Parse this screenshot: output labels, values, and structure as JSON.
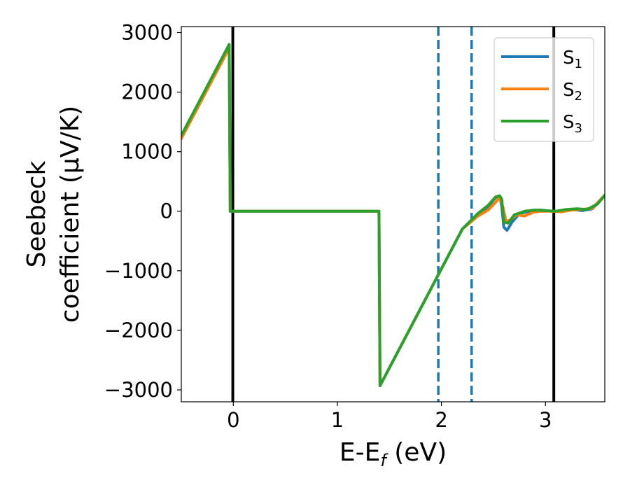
{
  "chart_data": {
    "type": "line",
    "title": "",
    "xlabel": "E-E_f (eV)",
    "xlabel_parts": {
      "main": "E-E",
      "sub": "f",
      "rest": " (eV)"
    },
    "ylabel_lines": [
      "Seebeck",
      "coefficient  (μV/K)"
    ],
    "xlim": [
      -0.5,
      3.57
    ],
    "ylim": [
      -3200,
      3100
    ],
    "xticks": [
      0,
      1,
      2,
      3
    ],
    "xtick_labels": [
      "0",
      "1",
      "2",
      "3"
    ],
    "yticks": [
      -3000,
      -2000,
      -1000,
      0,
      1000,
      2000,
      3000
    ],
    "ytick_labels": [
      "−3000",
      "−2000",
      "−1000",
      "0",
      "1000",
      "2000",
      "3000"
    ],
    "grid": false,
    "legend_position": "top-right",
    "vlines": [
      {
        "x": -0.005,
        "style": "solid",
        "color": "#000000"
      },
      {
        "x": 3.08,
        "style": "solid",
        "color": "#000000"
      },
      {
        "x": 1.97,
        "style": "dashed",
        "color": "#1f77b4"
      },
      {
        "x": 2.29,
        "style": "dashed",
        "color": "#1f77b4"
      }
    ],
    "series": [
      {
        "name": "S1",
        "legend_main": "S",
        "legend_sub": "1",
        "color": "#1f77b4",
        "points": [
          [
            -0.5,
            1240
          ],
          [
            -0.04,
            2800
          ],
          [
            -0.03,
            0
          ],
          [
            1.4,
            0
          ],
          [
            1.41,
            -2930
          ],
          [
            2.2,
            -300
          ],
          [
            2.35,
            -50
          ],
          [
            2.45,
            80
          ],
          [
            2.52,
            230
          ],
          [
            2.56,
            250
          ],
          [
            2.58,
            80
          ],
          [
            2.6,
            -270
          ],
          [
            2.63,
            -320
          ],
          [
            2.68,
            -180
          ],
          [
            2.75,
            -40
          ],
          [
            2.85,
            0
          ],
          [
            2.95,
            20
          ],
          [
            3.05,
            0
          ],
          [
            3.15,
            0
          ],
          [
            3.25,
            30
          ],
          [
            3.35,
            10
          ],
          [
            3.45,
            40
          ],
          [
            3.57,
            260
          ]
        ]
      },
      {
        "name": "S2",
        "legend_main": "S",
        "legend_sub": "2",
        "color": "#ff7f0e",
        "points": [
          [
            -0.5,
            1220
          ],
          [
            -0.04,
            2740
          ],
          [
            -0.03,
            0
          ],
          [
            1.4,
            0
          ],
          [
            1.41,
            -2930
          ],
          [
            2.2,
            -300
          ],
          [
            2.35,
            -80
          ],
          [
            2.45,
            20
          ],
          [
            2.52,
            150
          ],
          [
            2.56,
            230
          ],
          [
            2.59,
            80
          ],
          [
            2.62,
            -170
          ],
          [
            2.66,
            -150
          ],
          [
            2.72,
            -60
          ],
          [
            2.8,
            -80
          ],
          [
            2.88,
            -20
          ],
          [
            2.95,
            0
          ],
          [
            3.05,
            0
          ],
          [
            3.15,
            -10
          ],
          [
            3.25,
            20
          ],
          [
            3.35,
            30
          ],
          [
            3.45,
            50
          ],
          [
            3.57,
            270
          ]
        ]
      },
      {
        "name": "S3",
        "legend_main": "S",
        "legend_sub": "3",
        "color": "#2ca02c",
        "points": [
          [
            -0.5,
            1270
          ],
          [
            -0.04,
            2800
          ],
          [
            -0.03,
            0
          ],
          [
            1.4,
            0
          ],
          [
            1.41,
            -2930
          ],
          [
            2.2,
            -300
          ],
          [
            2.35,
            -40
          ],
          [
            2.45,
            100
          ],
          [
            2.52,
            240
          ],
          [
            2.56,
            260
          ],
          [
            2.58,
            200
          ],
          [
            2.6,
            -180
          ],
          [
            2.64,
            -200
          ],
          [
            2.7,
            -60
          ],
          [
            2.8,
            0
          ],
          [
            2.9,
            20
          ],
          [
            3.0,
            10
          ],
          [
            3.1,
            0
          ],
          [
            3.2,
            30
          ],
          [
            3.3,
            40
          ],
          [
            3.4,
            30
          ],
          [
            3.5,
            120
          ],
          [
            3.57,
            270
          ]
        ]
      }
    ]
  }
}
